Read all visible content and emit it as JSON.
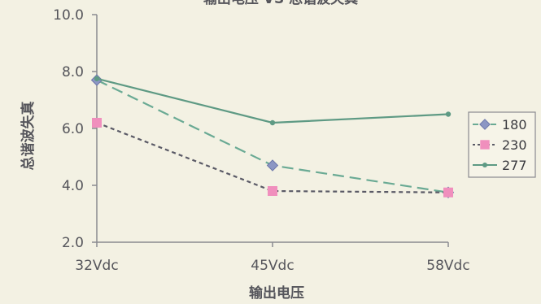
{
  "chart_data": {
    "type": "line",
    "title": "输出电压 VS 总谐波失真",
    "xlabel": "输出电压",
    "ylabel": "总谐波失真",
    "categories": [
      "32Vdc",
      "45Vdc",
      "58Vdc"
    ],
    "ylim": [
      2.0,
      10.0
    ],
    "yticks": [
      "2.0",
      "4.0",
      "6.0",
      "8.0",
      "10.0"
    ],
    "grid": false,
    "legend_position": "right",
    "series": [
      {
        "name": "180",
        "values": [
          7.7,
          4.7,
          3.75
        ],
        "color": "#6aaa94",
        "marker": "diamond",
        "dash": "dashed"
      },
      {
        "name": "230",
        "values": [
          6.2,
          3.8,
          3.75
        ],
        "color": "#f08fbd",
        "marker": "square",
        "dash": "dotted"
      },
      {
        "name": "277",
        "values": [
          7.75,
          6.2,
          6.5
        ],
        "color": "#5e9a84",
        "marker": "circle",
        "dash": "solid"
      }
    ]
  }
}
